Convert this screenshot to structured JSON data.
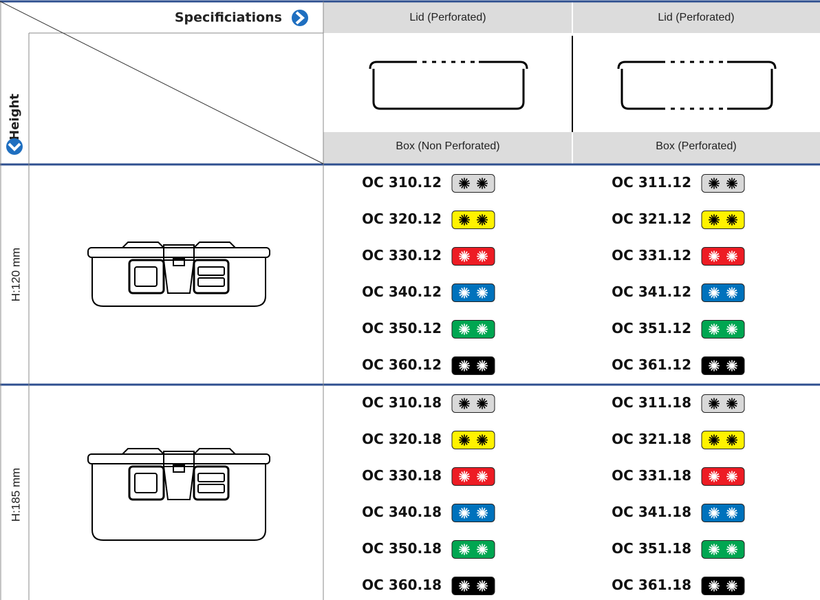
{
  "header": {
    "specifications": "Specificiations",
    "height": "Height",
    "columns": [
      {
        "lid": "Lid (Perforated)",
        "box": "Box (Non Perforated)"
      },
      {
        "lid": "Lid (Perforated)",
        "box": "Box (Perforated)"
      }
    ]
  },
  "table": {
    "colors": [
      "#d9d9d9",
      "#fff200",
      "#ed1c24",
      "#0072bc",
      "#00a651",
      "#000000"
    ],
    "groups": [
      {
        "label": "H:120 mm",
        "rows": [
          [
            "OC 310.12",
            "OC 311.12"
          ],
          [
            "OC 320.12",
            "OC 321.12"
          ],
          [
            "OC 330.12",
            "OC 331.12"
          ],
          [
            "OC 340.12",
            "OC 341.12"
          ],
          [
            "OC 350.12",
            "OC 351.12"
          ],
          [
            "OC 360.12",
            "OC 361.12"
          ]
        ]
      },
      {
        "label": "H:185 mm",
        "rows": [
          [
            "OC 310.18",
            "OC 311.18"
          ],
          [
            "OC 320.18",
            "OC 321.18"
          ],
          [
            "OC 330.18",
            "OC 331.18"
          ],
          [
            "OC 340.18",
            "OC 341.18"
          ],
          [
            "OC 350.18",
            "OC 351.18"
          ],
          [
            "OC 360.18",
            "OC 361.18"
          ]
        ]
      }
    ]
  }
}
